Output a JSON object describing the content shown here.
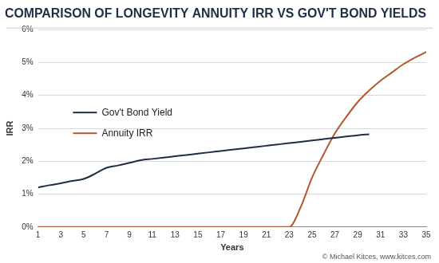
{
  "chart_data": {
    "type": "line",
    "title": "COMPARISON OF LONGEVITY ANNUITY IRR VS GOV'T BOND YIELDS",
    "x_label": "Years",
    "y_label": "IRR",
    "annotations": [
      "© Michael Kitces, www.kitces.com"
    ],
    "x": [
      1,
      2,
      3,
      4,
      5,
      6,
      7,
      8,
      9,
      10,
      11,
      12,
      13,
      14,
      15,
      16,
      17,
      18,
      19,
      20,
      21,
      22,
      23,
      24,
      25,
      26,
      27,
      28,
      29,
      30,
      31,
      32,
      33,
      34,
      35
    ],
    "series": [
      {
        "name": "Gov't Bond Yield",
        "color": "#1f2d44",
        "values": [
          1.2,
          1.27,
          1.33,
          1.4,
          1.46,
          1.62,
          1.8,
          1.87,
          1.95,
          2.03,
          2.07,
          2.11,
          2.15,
          2.19,
          2.23,
          2.27,
          2.31,
          2.35,
          2.39,
          2.43,
          2.47,
          2.51,
          2.55,
          2.59,
          2.63,
          2.67,
          2.71,
          2.75,
          2.79,
          2.82,
          null,
          null,
          null,
          null,
          null
        ]
      },
      {
        "name": "Annuity IRR",
        "color": "#b3582c",
        "values": [
          0,
          0,
          0,
          0,
          0,
          0,
          0,
          0,
          0,
          0,
          0,
          0,
          0,
          0,
          0,
          0,
          0,
          0,
          0,
          0,
          0,
          0,
          0,
          0.6,
          1.5,
          2.2,
          2.85,
          3.35,
          3.8,
          4.15,
          4.45,
          4.7,
          4.95,
          5.15,
          5.32
        ]
      }
    ],
    "xlim": [
      1,
      35
    ],
    "xticks": [
      1,
      3,
      5,
      7,
      9,
      11,
      13,
      15,
      17,
      19,
      21,
      23,
      25,
      27,
      29,
      31,
      33,
      35
    ],
    "ylim": [
      0,
      6
    ],
    "yticks": [
      {
        "value": 0,
        "label": "0%"
      },
      {
        "value": 1,
        "label": "1%"
      },
      {
        "value": 2,
        "label": "2%"
      },
      {
        "value": 3,
        "label": "3%"
      },
      {
        "value": 4,
        "label": "4%"
      },
      {
        "value": 5,
        "label": "5%"
      },
      {
        "value": 6,
        "label": "6%"
      }
    ],
    "grid": true,
    "legend": "left"
  }
}
